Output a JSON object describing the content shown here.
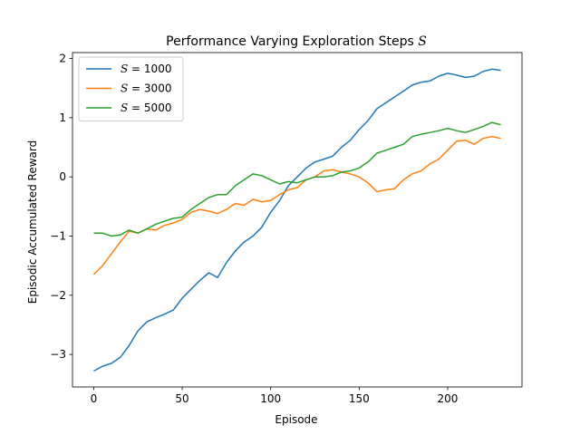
{
  "chart_data": {
    "type": "line",
    "title": "Performance Varying Exploration Steps",
    "title_symbol": "S",
    "xlabel": "Episode",
    "ylabel": "Episodic Accumulated Reward",
    "xlim": [
      -12,
      242
    ],
    "ylim": [
      -3.55,
      2.1
    ],
    "xticks": [
      0,
      50,
      100,
      150,
      200
    ],
    "yticks": [
      -3,
      -2,
      -1,
      0,
      1,
      2
    ],
    "grid": false,
    "legend_position": "top-left",
    "series": [
      {
        "name": "S = 1000",
        "symbol": "S",
        "value_label": "= 1000",
        "color": "#1f77b4",
        "x": [
          0,
          5,
          10,
          15,
          20,
          25,
          30,
          35,
          40,
          45,
          50,
          55,
          60,
          65,
          70,
          75,
          80,
          85,
          90,
          95,
          100,
          105,
          110,
          115,
          120,
          125,
          130,
          135,
          140,
          145,
          150,
          155,
          160,
          165,
          170,
          175,
          180,
          185,
          190,
          195,
          200,
          205,
          210,
          215,
          220,
          225,
          230
        ],
        "y": [
          -3.28,
          -3.2,
          -3.15,
          -3.05,
          -2.85,
          -2.6,
          -2.45,
          -2.38,
          -2.32,
          -2.25,
          -2.05,
          -1.9,
          -1.75,
          -1.62,
          -1.7,
          -1.45,
          -1.25,
          -1.1,
          -1.0,
          -0.85,
          -0.6,
          -0.4,
          -0.15,
          0.0,
          0.15,
          0.25,
          0.3,
          0.35,
          0.5,
          0.62,
          0.8,
          0.95,
          1.15,
          1.25,
          1.35,
          1.45,
          1.55,
          1.6,
          1.62,
          1.7,
          1.75,
          1.72,
          1.68,
          1.7,
          1.78,
          1.82,
          1.8
        ]
      },
      {
        "name": "S = 3000",
        "symbol": "S",
        "value_label": "= 3000",
        "color": "#ff7f0e",
        "x": [
          0,
          5,
          10,
          15,
          20,
          25,
          30,
          35,
          40,
          45,
          50,
          55,
          60,
          65,
          70,
          75,
          80,
          85,
          90,
          95,
          100,
          105,
          110,
          115,
          120,
          125,
          130,
          135,
          140,
          145,
          150,
          155,
          160,
          165,
          170,
          175,
          180,
          185,
          190,
          195,
          200,
          205,
          210,
          215,
          220,
          225,
          230
        ],
        "y": [
          -1.65,
          -1.5,
          -1.3,
          -1.1,
          -0.92,
          -0.95,
          -0.88,
          -0.9,
          -0.82,
          -0.78,
          -0.72,
          -0.6,
          -0.55,
          -0.58,
          -0.62,
          -0.55,
          -0.45,
          -0.48,
          -0.38,
          -0.42,
          -0.4,
          -0.3,
          -0.22,
          -0.18,
          -0.05,
          0.0,
          0.1,
          0.12,
          0.08,
          0.05,
          0.0,
          -0.1,
          -0.25,
          -0.22,
          -0.2,
          -0.05,
          0.05,
          0.1,
          0.22,
          0.3,
          0.45,
          0.6,
          0.62,
          0.55,
          0.65,
          0.68,
          0.65
        ]
      },
      {
        "name": "S = 5000",
        "symbol": "S",
        "value_label": "= 5000",
        "color": "#2ca02c",
        "x": [
          0,
          5,
          10,
          15,
          20,
          25,
          30,
          35,
          40,
          45,
          50,
          55,
          60,
          65,
          70,
          75,
          80,
          85,
          90,
          95,
          100,
          105,
          110,
          115,
          120,
          125,
          130,
          135,
          140,
          145,
          150,
          155,
          160,
          165,
          170,
          175,
          180,
          185,
          190,
          195,
          200,
          205,
          210,
          215,
          220,
          225,
          230
        ],
        "y": [
          -0.95,
          -0.95,
          -1.0,
          -0.98,
          -0.9,
          -0.95,
          -0.88,
          -0.8,
          -0.75,
          -0.7,
          -0.68,
          -0.55,
          -0.45,
          -0.35,
          -0.3,
          -0.3,
          -0.15,
          -0.05,
          0.05,
          0.02,
          -0.05,
          -0.12,
          -0.08,
          -0.1,
          -0.05,
          0.0,
          0.0,
          0.02,
          0.08,
          0.1,
          0.15,
          0.25,
          0.4,
          0.45,
          0.5,
          0.55,
          0.68,
          0.72,
          0.75,
          0.78,
          0.82,
          0.78,
          0.75,
          0.8,
          0.85,
          0.92,
          0.88
        ]
      }
    ]
  }
}
